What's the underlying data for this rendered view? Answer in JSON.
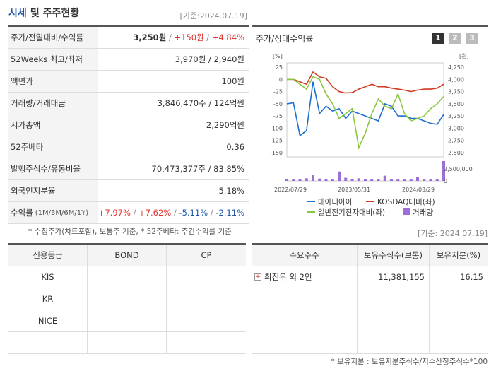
{
  "header": {
    "title_part1": "시세",
    "title_part2": "및 주주현황",
    "date": "[기준:2024.07.19]"
  },
  "quote": {
    "rows": [
      {
        "key": "주가/전일대비/수익률",
        "price": "3,250원",
        "change": "+150원",
        "rate": "+4.84%"
      },
      {
        "key": "52Weeks 최고/최저",
        "value": "3,970원 / 2,940원"
      },
      {
        "key": "액면가",
        "value": "100원"
      },
      {
        "key": "거래량/거래대금",
        "value": "3,846,470주 / 124억원"
      },
      {
        "key": "시가총액",
        "value": "2,290억원"
      },
      {
        "key": "52주베타",
        "value": "0.36"
      },
      {
        "key": "발행주식수/유동비율",
        "value": "70,473,377주 / 83.85%"
      },
      {
        "key": "외국인지분율",
        "value": "5.18%"
      },
      {
        "key": "수익률",
        "key_sub": "(1M/3M/6M/1Y)",
        "r1": "+7.97%",
        "r2": "+7.62%",
        "r3": "-5.11%",
        "r4": "-2.11%"
      }
    ]
  },
  "note1": "* 수정주가(차트포함), 보통주 기준, * 52주베타: 주간수익률 기준",
  "chart": {
    "title": "주가/상대수익률",
    "pages": [
      "1",
      "2",
      "3"
    ],
    "left_unit": "[%]",
    "right_unit": "[원]",
    "left_ticks": [
      "25",
      "0",
      "-25",
      "-50",
      "-75",
      "-100",
      "-125",
      "-150"
    ],
    "right_ticks": [
      "4,250",
      "4,000",
      "3,750",
      "3,500",
      "3,250",
      "3,000",
      "2,750",
      "2,500"
    ],
    "vol_tick": "2,500,000",
    "vol_zero": "0",
    "x_ticks": [
      "2022/07/29",
      "2023/05/31",
      "2024/03/29"
    ],
    "legend": [
      "대아티아이",
      "KOSDAQ대비(좌)",
      "일반전기전자대비(좌)",
      "거래량"
    ],
    "colors": {
      "price": "#1d6fd0",
      "kosdaq": "#d2391f",
      "sector": "#8cc63f",
      "volume": "#9b6fd6"
    }
  },
  "chart_data": {
    "type": "line",
    "x": [
      "2022/07",
      "2022/08",
      "2022/09",
      "2022/10",
      "2022/11",
      "2022/12",
      "2023/01",
      "2023/02",
      "2023/03",
      "2023/04",
      "2023/05",
      "2023/06",
      "2023/07",
      "2023/08",
      "2023/09",
      "2023/10",
      "2023/11",
      "2023/12",
      "2024/01",
      "2024/02",
      "2024/03",
      "2024/04",
      "2024/05",
      "2024/06",
      "2024/07"
    ],
    "series": [
      {
        "name": "대아티아이",
        "axis": "right",
        "values": [
          3500,
          3520,
          2850,
          2950,
          3950,
          3300,
          3450,
          3350,
          3400,
          3200,
          3350,
          3300,
          3250,
          3200,
          3150,
          3500,
          3450,
          3250,
          3250,
          3200,
          3200,
          3150,
          3100,
          3080,
          3280
        ]
      },
      {
        "name": "KOSDAQ대비(좌)",
        "axis": "left",
        "values": [
          0,
          0,
          -5,
          -10,
          15,
          5,
          2,
          -15,
          -25,
          -28,
          -27,
          -20,
          -15,
          -10,
          -15,
          -15,
          -18,
          -20,
          -22,
          -25,
          -22,
          -20,
          -20,
          -18,
          -10
        ]
      },
      {
        "name": "일반전기전자대비(좌)",
        "axis": "left",
        "values": [
          0,
          0,
          -10,
          -20,
          5,
          0,
          -30,
          -50,
          -80,
          -70,
          -60,
          -140,
          -110,
          -70,
          -40,
          -55,
          -60,
          -30,
          -70,
          -85,
          -80,
          -75,
          -60,
          -50,
          -35
        ]
      },
      {
        "name": "거래량",
        "axis": "volume",
        "values": [
          400000,
          300000,
          350000,
          500000,
          1200000,
          450000,
          300000,
          350000,
          1800000,
          600000,
          400000,
          500000,
          300000,
          350000,
          400000,
          1000000,
          350000,
          300000,
          400000,
          350000,
          700000,
          300000,
          350000,
          400000,
          3800000
        ]
      }
    ],
    "ylim_left": [
      -150,
      25
    ],
    "ylim_right": [
      2500,
      4250
    ]
  },
  "date2": "[기준: 2024.07.19]",
  "credit": {
    "headers": [
      "신용등급",
      "BOND",
      "CP"
    ],
    "rows": [
      "KIS",
      "KR",
      "NICE"
    ]
  },
  "holders": {
    "headers": [
      "주요주주",
      "보유주식수(보통)",
      "보유지분(%)"
    ],
    "rows": [
      {
        "name": "최진우 외 2인",
        "shares": "11,381,155",
        "pct": "16.15"
      }
    ]
  },
  "note2": "* 보유지분 : 보유지분주식수/지수산정주식수*100"
}
